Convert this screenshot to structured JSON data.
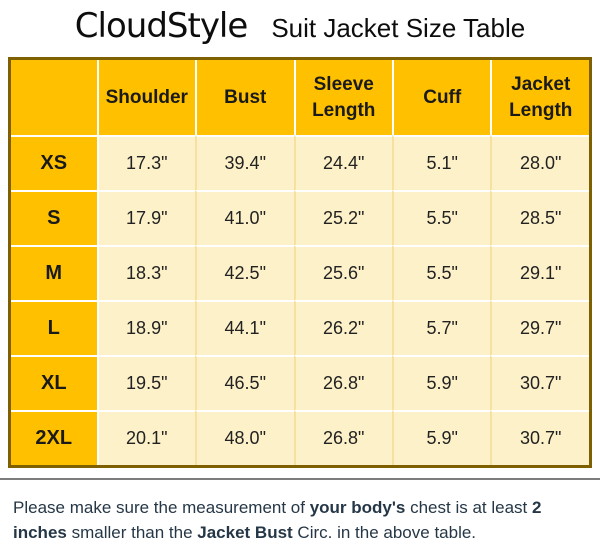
{
  "header": {
    "logo": "CloudStyle",
    "title": "Suit Jacket Size Table"
  },
  "chart_data": {
    "type": "table",
    "title": "Suit Jacket Size Table",
    "columns": [
      "",
      "Shoulder",
      "Bust",
      "Sleeve Length",
      "Cuff",
      "Jacket Length"
    ],
    "rows": [
      {
        "size": "XS",
        "values": [
          "17.3\"",
          "39.4\"",
          "24.4\"",
          "5.1\"",
          "28.0\""
        ]
      },
      {
        "size": "S",
        "values": [
          "17.9\"",
          "41.0\"",
          "25.2\"",
          "5.5\"",
          "28.5\""
        ]
      },
      {
        "size": "M",
        "values": [
          "18.3\"",
          "42.5\"",
          "25.6\"",
          "5.5\"",
          "29.1\""
        ]
      },
      {
        "size": "L",
        "values": [
          "18.9\"",
          "44.1\"",
          "26.2\"",
          "5.7\"",
          "29.7\""
        ]
      },
      {
        "size": "XL",
        "values": [
          "19.5\"",
          "46.5\"",
          "26.8\"",
          "5.9\"",
          "30.7\""
        ]
      },
      {
        "size": "2XL",
        "values": [
          "20.1\"",
          "48.0\"",
          "26.8\"",
          "5.9\"",
          "30.7\""
        ]
      }
    ]
  },
  "footer": {
    "segments": [
      {
        "text": "Please make sure the measurement of "
      },
      {
        "text": "your body's"
      },
      {
        "text": " chest is at least "
      },
      {
        "text": "2 inches"
      },
      {
        "text": " smaller than the "
      },
      {
        "text": "Jacket Bust"
      },
      {
        "text": " Circ. in the above table."
      }
    ]
  },
  "colors": {
    "gold": "#FFC000",
    "cream": "#FDF1C9",
    "table_border": "#7F6000",
    "grid_vertical": "#F6E1A0",
    "grid_horizontal": "#FFFFFF",
    "footer_text": "#253746",
    "divider": "#7D7D7D"
  }
}
